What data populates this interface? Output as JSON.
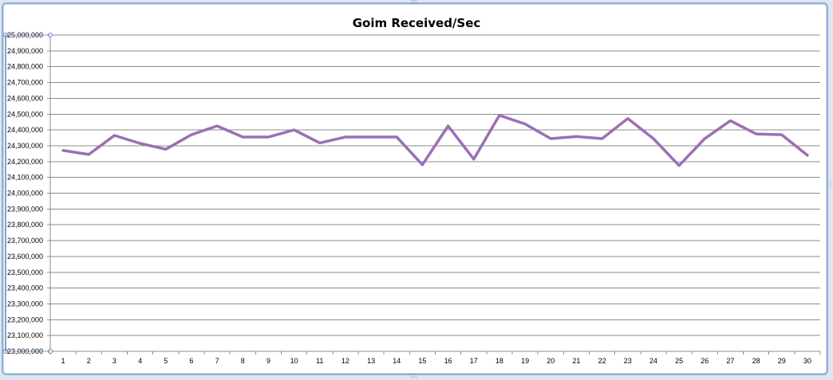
{
  "chart_data": {
    "type": "line",
    "title": "Goim Received/Sec",
    "xlabel": "",
    "ylabel": "",
    "categories": [
      "1",
      "2",
      "3",
      "4",
      "5",
      "6",
      "7",
      "8",
      "9",
      "10",
      "11",
      "12",
      "13",
      "14",
      "15",
      "16",
      "17",
      "18",
      "19",
      "20",
      "21",
      "22",
      "23",
      "24",
      "25",
      "26",
      "27",
      "28",
      "29",
      "30"
    ],
    "y_tick_labels": [
      "25,000,000",
      "24,900,000",
      "24,800,000",
      "24,700,000",
      "24,600,000",
      "24,500,000",
      "24,400,000",
      "24,300,000",
      "24,200,000",
      "24,100,000",
      "24,000,000",
      "23,900,000",
      "23,800,000",
      "23,700,000",
      "23,600,000",
      "23,500,000",
      "23,400,000",
      "23,300,000",
      "23,200,000",
      "23,100,000",
      "23,000,000"
    ],
    "ylim": [
      23000000,
      25000000
    ],
    "y_step": 100000,
    "grid": true,
    "legend": "none",
    "series": [
      {
        "color": "#9b6fb5",
        "values": [
          24270000,
          24245000,
          24365000,
          24315000,
          24278000,
          24370000,
          24425000,
          24355000,
          24355000,
          24400000,
          24318000,
          24355000,
          24355000,
          24355000,
          24180000,
          24425000,
          24215000,
          24492000,
          24438000,
          24345000,
          24358000,
          24345000,
          24472000,
          24345000,
          24175000,
          24345000,
          24458000,
          24375000,
          24370000,
          24240000
        ]
      }
    ]
  }
}
